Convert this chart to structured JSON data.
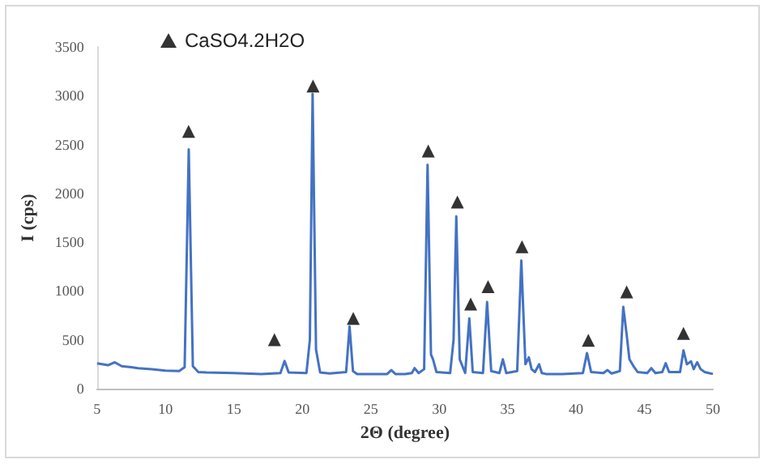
{
  "chart_data": {
    "type": "line",
    "xlabel": "2Θ (degree)",
    "ylabel": "I (cps)",
    "xlim": [
      5,
      50
    ],
    "xticks": [
      5,
      10,
      15,
      20,
      25,
      30,
      35,
      40,
      45,
      50
    ],
    "ylim": [
      0,
      3500
    ],
    "yticks": [
      0,
      500,
      1000,
      1500,
      2000,
      2500,
      3000,
      3500
    ],
    "grid": false,
    "legend": "top left",
    "marker": "none",
    "line_style": "solid",
    "series": [
      {
        "color": "#4472c4",
        "x": [
          5,
          5.8,
          6.3,
          6.8,
          7.5,
          8,
          9,
          10,
          11,
          11.4,
          11.7,
          12,
          12.4,
          13,
          15,
          17,
          18.4,
          18.7,
          19,
          20.3,
          20.55,
          20.75,
          21,
          21.3,
          22,
          23.2,
          23.45,
          23.7,
          24,
          25,
          26.2,
          26.5,
          26.8,
          27.5,
          28,
          28.2,
          28.5,
          28.9,
          29.15,
          29.4,
          29.55,
          29.8,
          30.8,
          31.05,
          31.25,
          31.5,
          31.9,
          32.2,
          32.45,
          33.2,
          33.5,
          33.8,
          34.4,
          34.65,
          34.9,
          35.7,
          36.0,
          36.3,
          36.55,
          36.75,
          37,
          37.3,
          37.5,
          37.8,
          39,
          40.5,
          40.8,
          41.1,
          42,
          42.3,
          42.6,
          43.2,
          43.45,
          43.7,
          43.9,
          44.2,
          44.5,
          45.2,
          45.5,
          45.8,
          46.3,
          46.55,
          46.8,
          47.6,
          47.85,
          48.1,
          48.4,
          48.6,
          48.85,
          49.1,
          49.4,
          49.7,
          50
        ],
        "values": [
          260,
          240,
          270,
          230,
          220,
          210,
          200,
          185,
          180,
          220,
          2450,
          230,
          170,
          165,
          160,
          150,
          160,
          283,
          165,
          160,
          500,
          3018,
          400,
          165,
          155,
          170,
          637,
          180,
          150,
          150,
          150,
          190,
          150,
          150,
          160,
          210,
          160,
          200,
          2293,
          350,
          300,
          170,
          160,
          500,
          1765,
          300,
          160,
          719,
          170,
          160,
          887,
          180,
          160,
          300,
          160,
          180,
          1312,
          250,
          320,
          200,
          170,
          250,
          160,
          150,
          150,
          160,
          364,
          170,
          160,
          190,
          155,
          180,
          838,
          550,
          300,
          230,
          170,
          160,
          210,
          160,
          170,
          260,
          170,
          170,
          392,
          250,
          280,
          200,
          270,
          200,
          170,
          160,
          150
        ]
      },
      {
        "type": "scatter",
        "name": "CaSO4.2H2O",
        "color": "#000000",
        "marker": "triangle",
        "x": [
          11.69,
          17.96,
          20.78,
          23.72,
          29.2,
          31.33,
          32.3,
          33.57,
          36.05,
          40.9,
          43.7,
          47.85
        ],
        "values": [
          2636,
          502,
          3100,
          719,
          2435,
          1912,
          866,
          1046,
          1454,
          495,
          992,
          567
        ]
      }
    ]
  }
}
